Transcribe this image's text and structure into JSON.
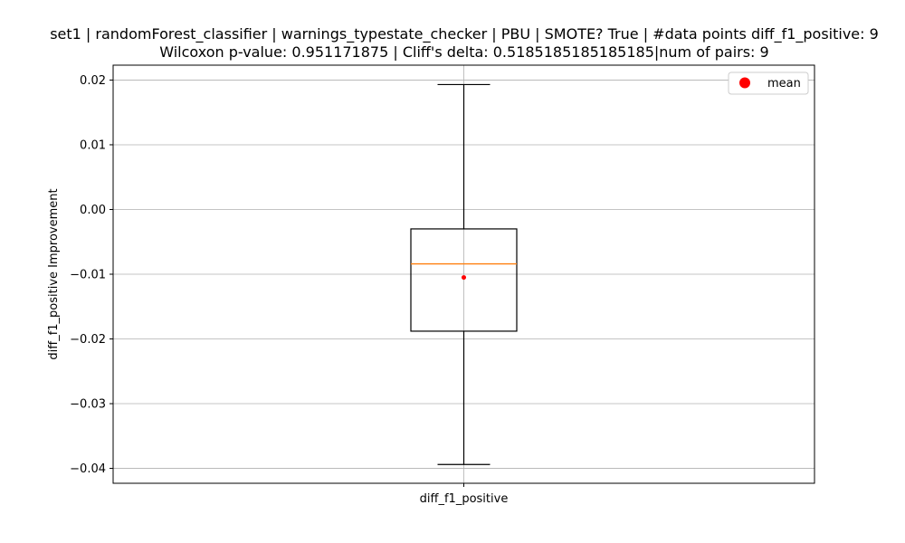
{
  "chart_data": {
    "type": "box",
    "title": "set1 | randomForest_classifier | warnings_typestate_checker | PBU | SMOTE? True | #data points diff_f1_positive: 9\nWilcoxon p-value: 0.951171875 | Cliff's delta: 0.5185185185185185|num of pairs: 9",
    "title_lines": [
      "set1 | randomForest_classifier | warnings_typestate_checker | PBU | SMOTE? True | #data points diff_f1_positive: 9",
      "Wilcoxon p-value: 0.951171875 | Cliff's delta: 0.5185185185185185|num of pairs: 9"
    ],
    "xlabel": "",
    "ylabel": "diff_f1_positive Improvement",
    "categories": [
      "diff_f1_positive"
    ],
    "boxes": [
      {
        "name": "diff_f1_positive",
        "whisker_low": -0.0394,
        "q1": -0.0188,
        "median": -0.0084,
        "q3": -0.003,
        "whisker_high": 0.0193,
        "mean": -0.0105
      }
    ],
    "ylim": [
      -0.0423,
      0.0223
    ],
    "yticks": [
      -0.04,
      -0.03,
      -0.02,
      -0.01,
      0.0,
      0.01,
      0.02
    ],
    "ytick_labels": [
      "−0.04",
      "−0.03",
      "−0.02",
      "−0.01",
      "0.00",
      "0.01",
      "0.02"
    ],
    "legend": {
      "entries": [
        {
          "label": "mean",
          "color": "#ff0000",
          "marker": "circle"
        }
      ],
      "position": "upper-right"
    },
    "grid": true,
    "colors": {
      "box": "#000000",
      "median": "#ff7f0e",
      "mean": "#ff0000",
      "grid": "#b0b0b0"
    }
  }
}
